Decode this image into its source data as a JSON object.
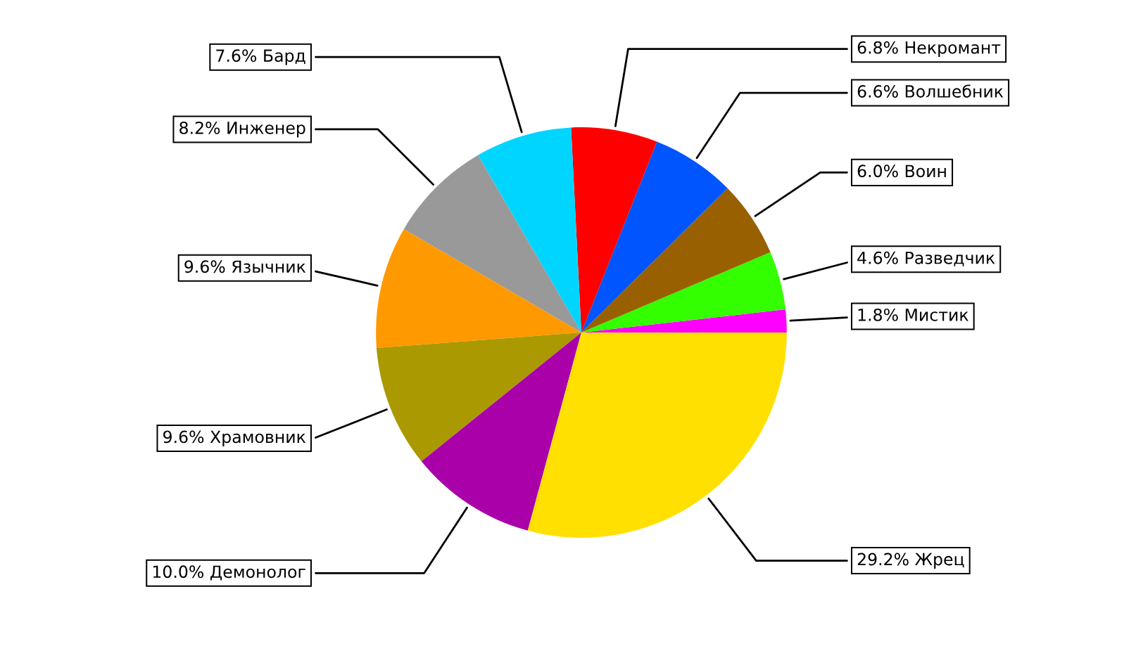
{
  "chart_data": {
    "type": "pie",
    "categories": [
      "Мистик",
      "Разведчик",
      "Воин",
      "Волшебник",
      "Некромант",
      "Бард",
      "Инженер",
      "Язычник",
      "Храмовник",
      "Демонолог",
      "Жрец"
    ],
    "values": [
      1.8,
      4.6,
      6.0,
      6.6,
      6.8,
      7.6,
      8.2,
      9.6,
      9.6,
      10.0,
      29.2
    ],
    "value_labels": [
      "1.8%",
      "4.6%",
      "6.0%",
      "6.6%",
      "6.8%",
      "7.6%",
      "8.2%",
      "9.6%",
      "9.6%",
      "10.0%",
      "29.2%"
    ],
    "colors": [
      "#ff00ff",
      "#33ff00",
      "#996000",
      "#0055ff",
      "#ff0000",
      "#00d5ff",
      "#999999",
      "#ff9900",
      "#aa9900",
      "#aa00aa",
      "#ffe000"
    ],
    "legend": false
  }
}
